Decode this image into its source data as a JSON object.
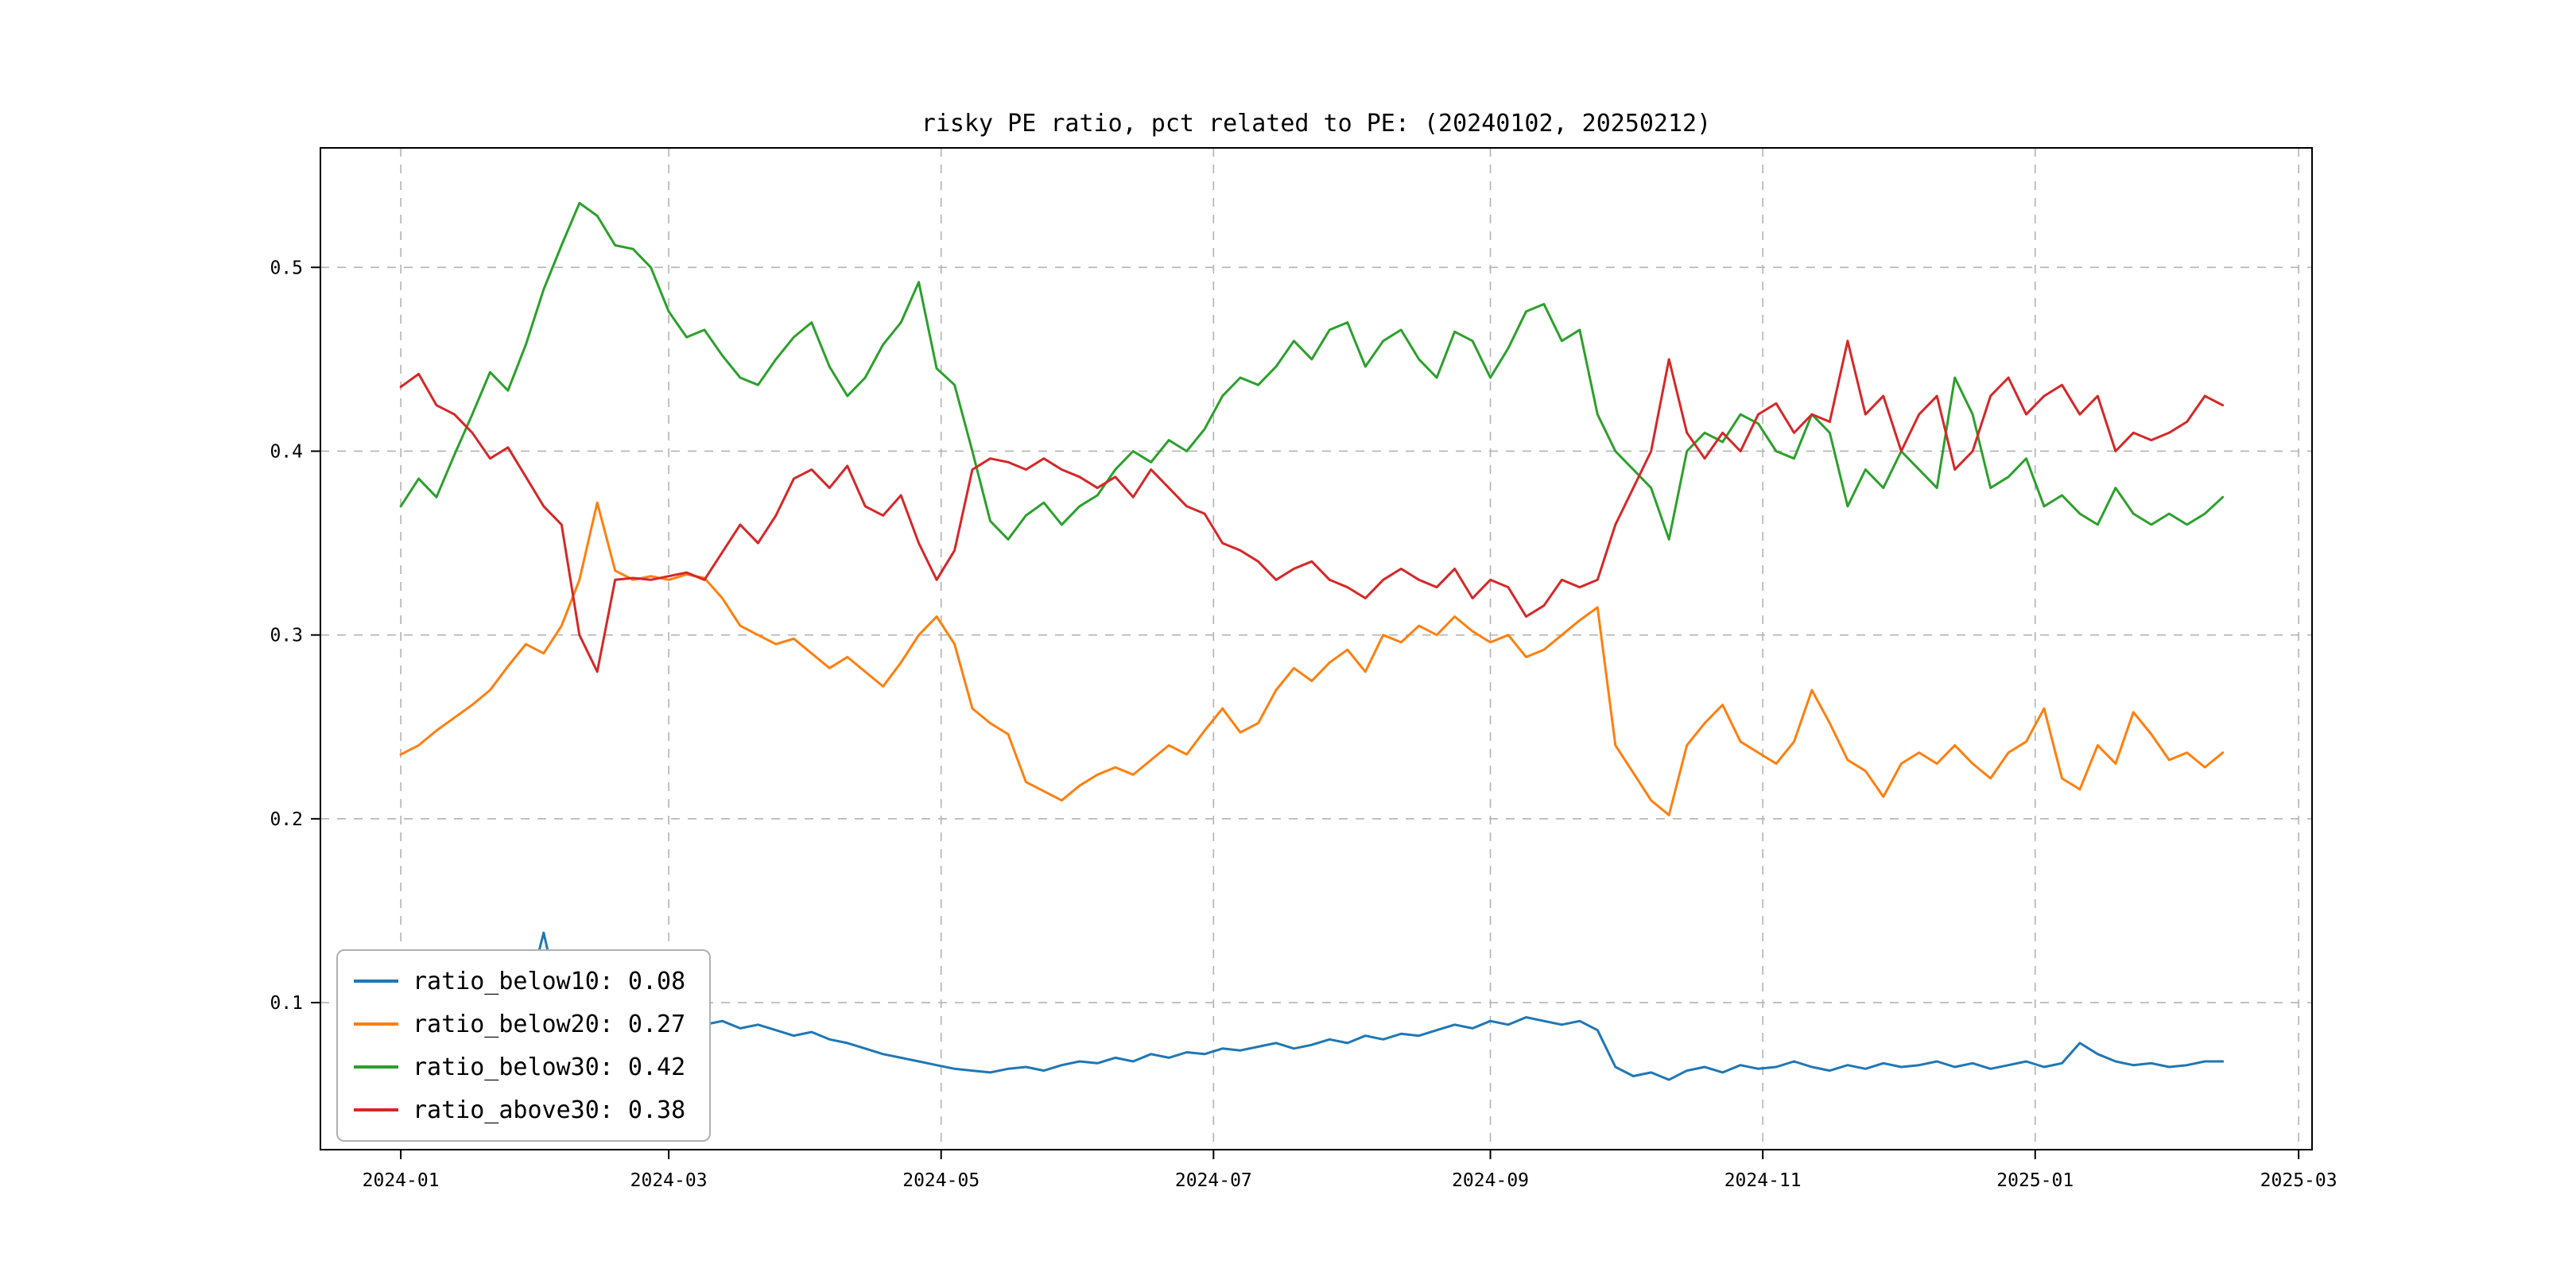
{
  "figure": {
    "background_color": "#ffffff",
    "grid_color": "#b3b3b3",
    "spine_color": "#000000",
    "tick_label_color": "#000000"
  },
  "chart_data": {
    "type": "line",
    "title": "risky PE ratio, pct related to PE: (20240102, 20250212)",
    "xlabel": "",
    "ylabel": "",
    "grid": true,
    "legend_position": "lower-left",
    "xlim_days": [
      -18,
      428
    ],
    "ylim": [
      0.02,
      0.565
    ],
    "x_data_range_days": [
      0,
      408
    ],
    "x_ticks": [
      {
        "day": 0,
        "label": "2024-01"
      },
      {
        "day": 60,
        "label": "2024-03"
      },
      {
        "day": 121,
        "label": "2024-05"
      },
      {
        "day": 182,
        "label": "2024-07"
      },
      {
        "day": 244,
        "label": "2024-09"
      },
      {
        "day": 305,
        "label": "2024-11"
      },
      {
        "day": 366,
        "label": "2025-01"
      },
      {
        "day": 425,
        "label": "2025-03"
      }
    ],
    "y_ticks": [
      {
        "value": 0.1,
        "label": "0.1"
      },
      {
        "value": 0.2,
        "label": "0.2"
      },
      {
        "value": 0.3,
        "label": "0.3"
      },
      {
        "value": 0.4,
        "label": "0.4"
      },
      {
        "value": 0.5,
        "label": "0.5"
      }
    ],
    "series": [
      {
        "name": "ratio_below10",
        "legend_label": "ratio_below10: 0.08",
        "color": "#1f77b4",
        "values": [
          0.095,
          0.092,
          0.094,
          0.09,
          0.091,
          0.089,
          0.092,
          0.1,
          0.138,
          0.095,
          0.092,
          0.09,
          0.091,
          0.089,
          0.09,
          0.092,
          0.09,
          0.088,
          0.09,
          0.086,
          0.088,
          0.085,
          0.082,
          0.084,
          0.08,
          0.078,
          0.075,
          0.072,
          0.07,
          0.068,
          0.066,
          0.064,
          0.063,
          0.062,
          0.064,
          0.065,
          0.063,
          0.066,
          0.068,
          0.067,
          0.07,
          0.068,
          0.072,
          0.07,
          0.073,
          0.072,
          0.075,
          0.074,
          0.076,
          0.078,
          0.075,
          0.077,
          0.08,
          0.078,
          0.082,
          0.08,
          0.083,
          0.082,
          0.085,
          0.088,
          0.086,
          0.09,
          0.088,
          0.092,
          0.09,
          0.088,
          0.09,
          0.085,
          0.065,
          0.06,
          0.062,
          0.058,
          0.063,
          0.065,
          0.062,
          0.066,
          0.064,
          0.065,
          0.068,
          0.065,
          0.063,
          0.066,
          0.064,
          0.067,
          0.065,
          0.066,
          0.068,
          0.065,
          0.067,
          0.064,
          0.066,
          0.068,
          0.065,
          0.067,
          0.078,
          0.072,
          0.068,
          0.066,
          0.067,
          0.065,
          0.066,
          0.068,
          0.068
        ]
      },
      {
        "name": "ratio_below20",
        "legend_label": "ratio_below20: 0.27",
        "color": "#ff7f0e",
        "values": [
          0.235,
          0.24,
          0.248,
          0.255,
          0.262,
          0.27,
          0.283,
          0.295,
          0.29,
          0.305,
          0.33,
          0.372,
          0.335,
          0.33,
          0.332,
          0.33,
          0.333,
          0.331,
          0.32,
          0.305,
          0.3,
          0.295,
          0.298,
          0.29,
          0.282,
          0.288,
          0.28,
          0.272,
          0.285,
          0.3,
          0.31,
          0.295,
          0.26,
          0.252,
          0.246,
          0.22,
          0.215,
          0.21,
          0.218,
          0.224,
          0.228,
          0.224,
          0.232,
          0.24,
          0.235,
          0.248,
          0.26,
          0.247,
          0.252,
          0.27,
          0.282,
          0.275,
          0.285,
          0.292,
          0.28,
          0.3,
          0.296,
          0.305,
          0.3,
          0.31,
          0.302,
          0.296,
          0.3,
          0.288,
          0.292,
          0.3,
          0.308,
          0.315,
          0.24,
          0.225,
          0.21,
          0.202,
          0.24,
          0.252,
          0.262,
          0.242,
          0.236,
          0.23,
          0.242,
          0.27,
          0.252,
          0.232,
          0.226,
          0.212,
          0.23,
          0.236,
          0.23,
          0.24,
          0.23,
          0.222,
          0.236,
          0.242,
          0.26,
          0.222,
          0.216,
          0.24,
          0.23,
          0.258,
          0.246,
          0.232,
          0.236,
          0.228,
          0.236
        ]
      },
      {
        "name": "ratio_below30",
        "legend_label": "ratio_below30: 0.42",
        "color": "#2ca02c",
        "values": [
          0.37,
          0.385,
          0.375,
          0.398,
          0.42,
          0.443,
          0.433,
          0.458,
          0.488,
          0.512,
          0.535,
          0.528,
          0.512,
          0.51,
          0.5,
          0.476,
          0.462,
          0.466,
          0.452,
          0.44,
          0.436,
          0.45,
          0.462,
          0.47,
          0.446,
          0.43,
          0.44,
          0.458,
          0.47,
          0.492,
          0.445,
          0.436,
          0.4,
          0.362,
          0.352,
          0.365,
          0.372,
          0.36,
          0.37,
          0.376,
          0.39,
          0.4,
          0.394,
          0.406,
          0.4,
          0.412,
          0.43,
          0.44,
          0.436,
          0.446,
          0.46,
          0.45,
          0.466,
          0.47,
          0.446,
          0.46,
          0.466,
          0.45,
          0.44,
          0.465,
          0.46,
          0.44,
          0.456,
          0.476,
          0.48,
          0.46,
          0.466,
          0.42,
          0.4,
          0.39,
          0.38,
          0.352,
          0.4,
          0.41,
          0.405,
          0.42,
          0.415,
          0.4,
          0.396,
          0.42,
          0.41,
          0.37,
          0.39,
          0.38,
          0.4,
          0.39,
          0.38,
          0.44,
          0.42,
          0.38,
          0.386,
          0.396,
          0.37,
          0.376,
          0.366,
          0.36,
          0.38,
          0.366,
          0.36,
          0.366,
          0.36,
          0.366,
          0.375
        ]
      },
      {
        "name": "ratio_above30",
        "legend_label": "ratio_above30: 0.38",
        "color": "#d62728",
        "values": [
          0.435,
          0.442,
          0.425,
          0.42,
          0.41,
          0.396,
          0.402,
          0.386,
          0.37,
          0.36,
          0.3,
          0.28,
          0.33,
          0.331,
          0.33,
          0.332,
          0.334,
          0.33,
          0.345,
          0.36,
          0.35,
          0.365,
          0.385,
          0.39,
          0.38,
          0.392,
          0.37,
          0.365,
          0.376,
          0.35,
          0.33,
          0.346,
          0.39,
          0.396,
          0.394,
          0.39,
          0.396,
          0.39,
          0.386,
          0.38,
          0.386,
          0.375,
          0.39,
          0.38,
          0.37,
          0.366,
          0.35,
          0.346,
          0.34,
          0.33,
          0.336,
          0.34,
          0.33,
          0.326,
          0.32,
          0.33,
          0.336,
          0.33,
          0.326,
          0.336,
          0.32,
          0.33,
          0.326,
          0.31,
          0.316,
          0.33,
          0.326,
          0.33,
          0.36,
          0.38,
          0.4,
          0.45,
          0.41,
          0.396,
          0.41,
          0.4,
          0.42,
          0.426,
          0.41,
          0.42,
          0.416,
          0.46,
          0.42,
          0.43,
          0.4,
          0.42,
          0.43,
          0.39,
          0.4,
          0.43,
          0.44,
          0.42,
          0.43,
          0.436,
          0.42,
          0.43,
          0.4,
          0.41,
          0.406,
          0.41,
          0.416,
          0.43,
          0.425
        ]
      }
    ]
  }
}
